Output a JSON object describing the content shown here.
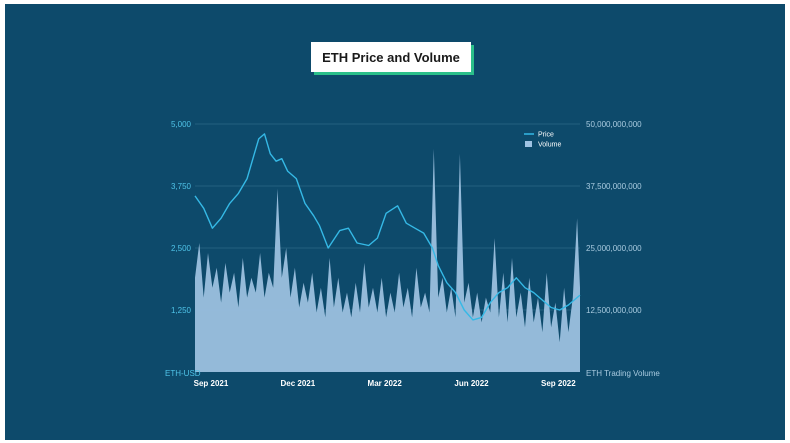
{
  "chart_data": {
    "type": "line+area",
    "title": "ETH Price and Volume",
    "left_axis": {
      "label": "ETH-USD",
      "ticks": [
        "5,000",
        "3,750",
        "2,500",
        "1,250"
      ],
      "tick_values": [
        5000,
        3750,
        2500,
        1250
      ],
      "range": [
        0,
        5000
      ]
    },
    "right_axis": {
      "label": "ETH Trading Volume",
      "ticks": [
        "50,000,000,000",
        "37,500,000,000",
        "25,000,000,000",
        "12,500,000,000"
      ],
      "tick_values": [
        50000000000,
        37500000000,
        25000000000,
        12500000000
      ],
      "range": [
        0,
        50000000000
      ]
    },
    "x_axis": {
      "ticks": [
        "Sep 2021",
        "Dec 2021",
        "Mar 2022",
        "Jun 2022",
        "Sep 2022"
      ],
      "tick_months": [
        0,
        3,
        6,
        9,
        12
      ],
      "range": [
        0,
        13.3
      ]
    },
    "grid": true,
    "legend": {
      "placement": "top-right",
      "entries": [
        {
          "name": "Price",
          "color": "#35b9e6"
        },
        {
          "name": "Volume",
          "color": "#9fc3e3"
        }
      ]
    },
    "series": [
      {
        "name": "Price",
        "unit": "months since Sep 2021",
        "x": [
          0,
          0.3,
          0.6,
          0.9,
          1.2,
          1.5,
          1.8,
          2.0,
          2.2,
          2.4,
          2.6,
          2.8,
          3.0,
          3.2,
          3.5,
          3.8,
          4.1,
          4.3,
          4.6,
          5.0,
          5.3,
          5.6,
          6.0,
          6.3,
          6.6,
          7.0,
          7.3,
          7.6,
          7.9,
          8.2,
          8.4,
          8.7,
          9.0,
          9.3,
          9.6,
          9.9,
          10.2,
          10.5,
          10.8,
          11.1,
          11.4,
          11.7,
          12.0,
          12.3,
          12.6,
          12.9,
          13.3
        ],
        "values": [
          3550,
          3300,
          2900,
          3100,
          3400,
          3600,
          3900,
          4300,
          4700,
          4800,
          4400,
          4250,
          4300,
          4050,
          3900,
          3400,
          3150,
          2950,
          2500,
          2850,
          2900,
          2600,
          2550,
          2700,
          3200,
          3350,
          3000,
          2900,
          2800,
          2500,
          2150,
          1800,
          1600,
          1250,
          1050,
          1100,
          1400,
          1600,
          1700,
          1900,
          1700,
          1600,
          1450,
          1300,
          1250,
          1350,
          1550
        ]
      },
      {
        "name": "Volume",
        "unit": "months since Sep 2021",
        "x": [
          0,
          0.15,
          0.3,
          0.45,
          0.6,
          0.75,
          0.9,
          1.05,
          1.2,
          1.35,
          1.5,
          1.65,
          1.8,
          1.95,
          2.1,
          2.25,
          2.4,
          2.55,
          2.7,
          2.85,
          3.0,
          3.15,
          3.3,
          3.45,
          3.6,
          3.75,
          3.9,
          4.05,
          4.2,
          4.35,
          4.5,
          4.65,
          4.8,
          4.95,
          5.1,
          5.25,
          5.4,
          5.55,
          5.7,
          5.85,
          6.0,
          6.15,
          6.3,
          6.45,
          6.6,
          6.75,
          6.9,
          7.05,
          7.2,
          7.35,
          7.5,
          7.65,
          7.8,
          7.95,
          8.1,
          8.25,
          8.4,
          8.55,
          8.7,
          8.85,
          9.0,
          9.15,
          9.3,
          9.45,
          9.6,
          9.75,
          9.9,
          10.05,
          10.2,
          10.35,
          10.5,
          10.65,
          10.8,
          10.95,
          11.1,
          11.25,
          11.4,
          11.55,
          11.7,
          11.85,
          12.0,
          12.15,
          12.3,
          12.45,
          12.6,
          12.75,
          12.9,
          13.05,
          13.2,
          13.3
        ],
        "values": [
          19000000000,
          26000000000,
          15000000000,
          24000000000,
          17000000000,
          21000000000,
          14000000000,
          22000000000,
          16000000000,
          20000000000,
          13000000000,
          23000000000,
          15000000000,
          19000000000,
          16000000000,
          24000000000,
          15000000000,
          20000000000,
          17000000000,
          37000000000,
          19000000000,
          25000000000,
          15000000000,
          21000000000,
          13000000000,
          18000000000,
          14000000000,
          20000000000,
          12000000000,
          17000000000,
          11000000000,
          23000000000,
          13000000000,
          19000000000,
          12000000000,
          16000000000,
          11000000000,
          18000000000,
          12000000000,
          22000000000,
          13000000000,
          17000000000,
          12000000000,
          19000000000,
          11000000000,
          16000000000,
          12000000000,
          20000000000,
          13000000000,
          17000000000,
          11000000000,
          21000000000,
          13000000000,
          16000000000,
          12000000000,
          45000000000,
          15000000000,
          19000000000,
          12000000000,
          17000000000,
          11000000000,
          44000000000,
          14000000000,
          18000000000,
          11000000000,
          16000000000,
          10000000000,
          15000000000,
          12000000000,
          27000000000,
          11000000000,
          20000000000,
          10000000000,
          23000000000,
          11000000000,
          16000000000,
          9000000000,
          19000000000,
          10000000000,
          15000000000,
          8000000000,
          20000000000,
          9000000000,
          14000000000,
          6000000000,
          17000000000,
          8000000000,
          15000000000,
          31000000000,
          17000000000
        ]
      }
    ]
  }
}
